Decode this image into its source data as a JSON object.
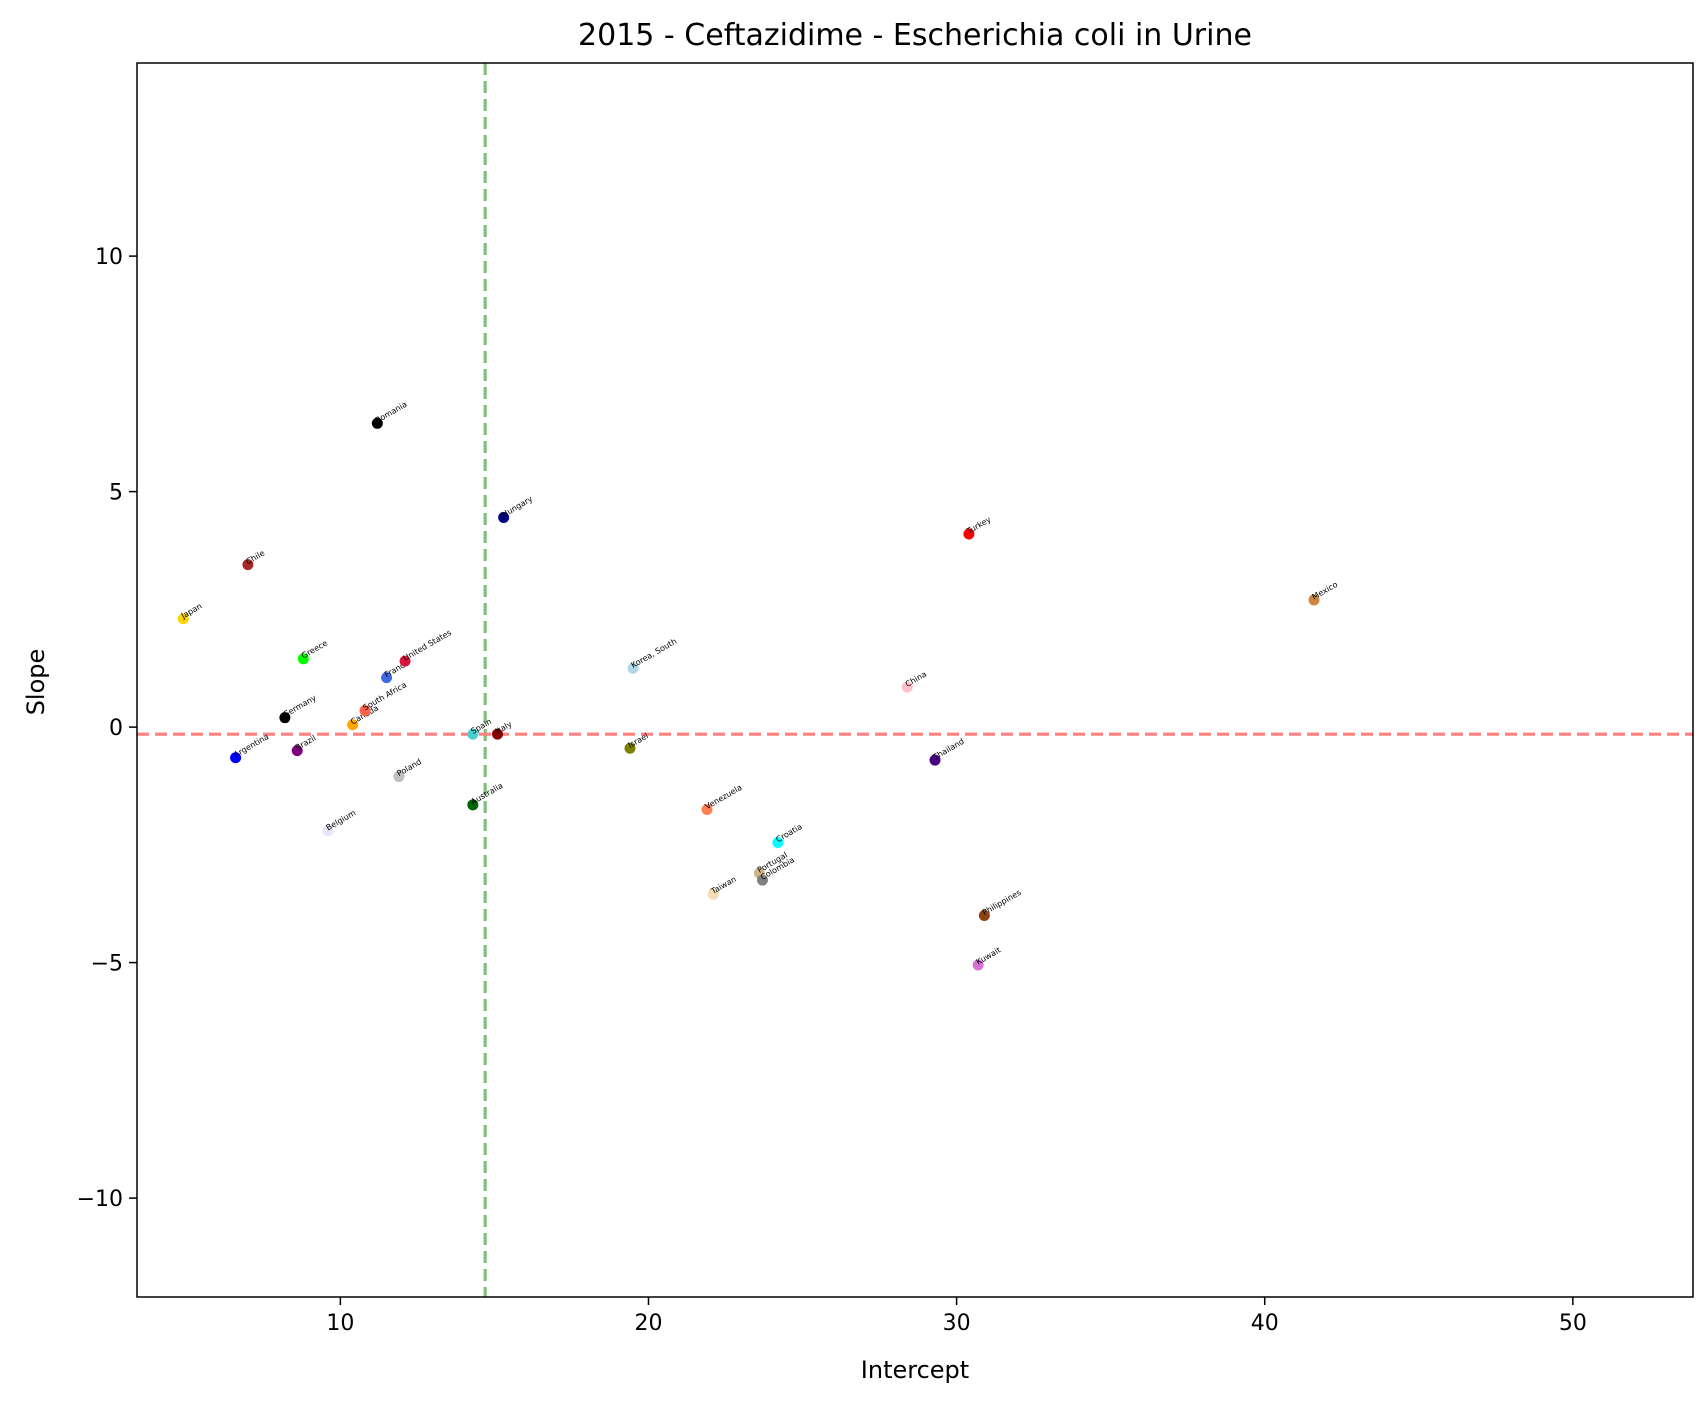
{
  "chart_data": {
    "type": "scatter",
    "title": "2015 - Ceftazidime - Escherichia coli in Urine",
    "xlabel": "Intercept",
    "ylabel": "Slope",
    "xlim": [
      3.4,
      53.9
    ],
    "ylim": [
      -12.1,
      14.1
    ],
    "xticks": [
      10,
      20,
      30,
      40,
      50
    ],
    "yticks": [
      -10,
      -5,
      0,
      5,
      10
    ],
    "xtick_labels": [
      "10",
      "20",
      "30",
      "40",
      "50"
    ],
    "ytick_labels": [
      "−10",
      "−5",
      "0",
      "5",
      "10"
    ],
    "grid": false,
    "reference_lines": {
      "vertical_x": 14.7,
      "vertical_color": "#7fbf7f",
      "horizontal_y": -0.15,
      "horizontal_color": "#ff8080"
    },
    "points": [
      {
        "label": "Japan",
        "x": 4.9,
        "y": 2.3,
        "color": "#ffd700"
      },
      {
        "label": "Chile",
        "x": 7.0,
        "y": 3.45,
        "color": "#a52a2a"
      },
      {
        "label": "Argentina",
        "x": 6.6,
        "y": -0.65,
        "color": "#0000ff"
      },
      {
        "label": "Germany",
        "x": 8.2,
        "y": 0.2,
        "color": "#000000"
      },
      {
        "label": "Brazil",
        "x": 8.6,
        "y": -0.5,
        "color": "#800080"
      },
      {
        "label": "Greece",
        "x": 8.8,
        "y": 1.45,
        "color": "#00ff00"
      },
      {
        "label": "Belgium",
        "x": 9.6,
        "y": -2.2,
        "color": "#e6e6fa"
      },
      {
        "label": "Canada",
        "x": 10.4,
        "y": 0.05,
        "color": "#ffa500"
      },
      {
        "label": "South Africa",
        "x": 10.8,
        "y": 0.35,
        "color": "#ff6347"
      },
      {
        "label": "Romania",
        "x": 11.2,
        "y": 6.45,
        "color": "#000000"
      },
      {
        "label": "France",
        "x": 11.5,
        "y": 1.05,
        "color": "#4169e1"
      },
      {
        "label": "Poland",
        "x": 11.9,
        "y": -1.05,
        "color": "#c0c0c0"
      },
      {
        "label": "United States",
        "x": 12.1,
        "y": 1.4,
        "color": "#dc143c"
      },
      {
        "label": "Spain",
        "x": 14.3,
        "y": -0.15,
        "color": "#48d1cc"
      },
      {
        "label": "Australia",
        "x": 14.3,
        "y": -1.65,
        "color": "#006400"
      },
      {
        "label": "Italy",
        "x": 15.1,
        "y": -0.15,
        "color": "#8b0000"
      },
      {
        "label": "Hungary",
        "x": 15.3,
        "y": 4.45,
        "color": "#000080"
      },
      {
        "label": "Israel",
        "x": 19.4,
        "y": -0.45,
        "color": "#808000"
      },
      {
        "label": "Korea, South",
        "x": 19.5,
        "y": 1.25,
        "color": "#add8e6"
      },
      {
        "label": "Venezuela",
        "x": 21.9,
        "y": -1.75,
        "color": "#ff7f50"
      },
      {
        "label": "Taiwan",
        "x": 22.1,
        "y": -3.55,
        "color": "#f5deb3"
      },
      {
        "label": "Portugal",
        "x": 23.6,
        "y": -3.1,
        "color": "#d2b48c"
      },
      {
        "label": "Colombia",
        "x": 23.7,
        "y": -3.25,
        "color": "#808080"
      },
      {
        "label": "Croatia",
        "x": 24.2,
        "y": -2.45,
        "color": "#00ffff"
      },
      {
        "label": "China",
        "x": 28.4,
        "y": 0.85,
        "color": "#ffc0cb"
      },
      {
        "label": "Thailand",
        "x": 29.3,
        "y": -0.7,
        "color": "#4b0082"
      },
      {
        "label": "Turkey",
        "x": 30.4,
        "y": 4.1,
        "color": "#ff0000"
      },
      {
        "label": "Kuwait",
        "x": 30.7,
        "y": -5.05,
        "color": "#da70d6"
      },
      {
        "label": "Philippines",
        "x": 30.9,
        "y": -4.0,
        "color": "#8b4513"
      },
      {
        "label": "Mexico",
        "x": 41.6,
        "y": 2.7,
        "color": "#cd853f"
      }
    ]
  }
}
